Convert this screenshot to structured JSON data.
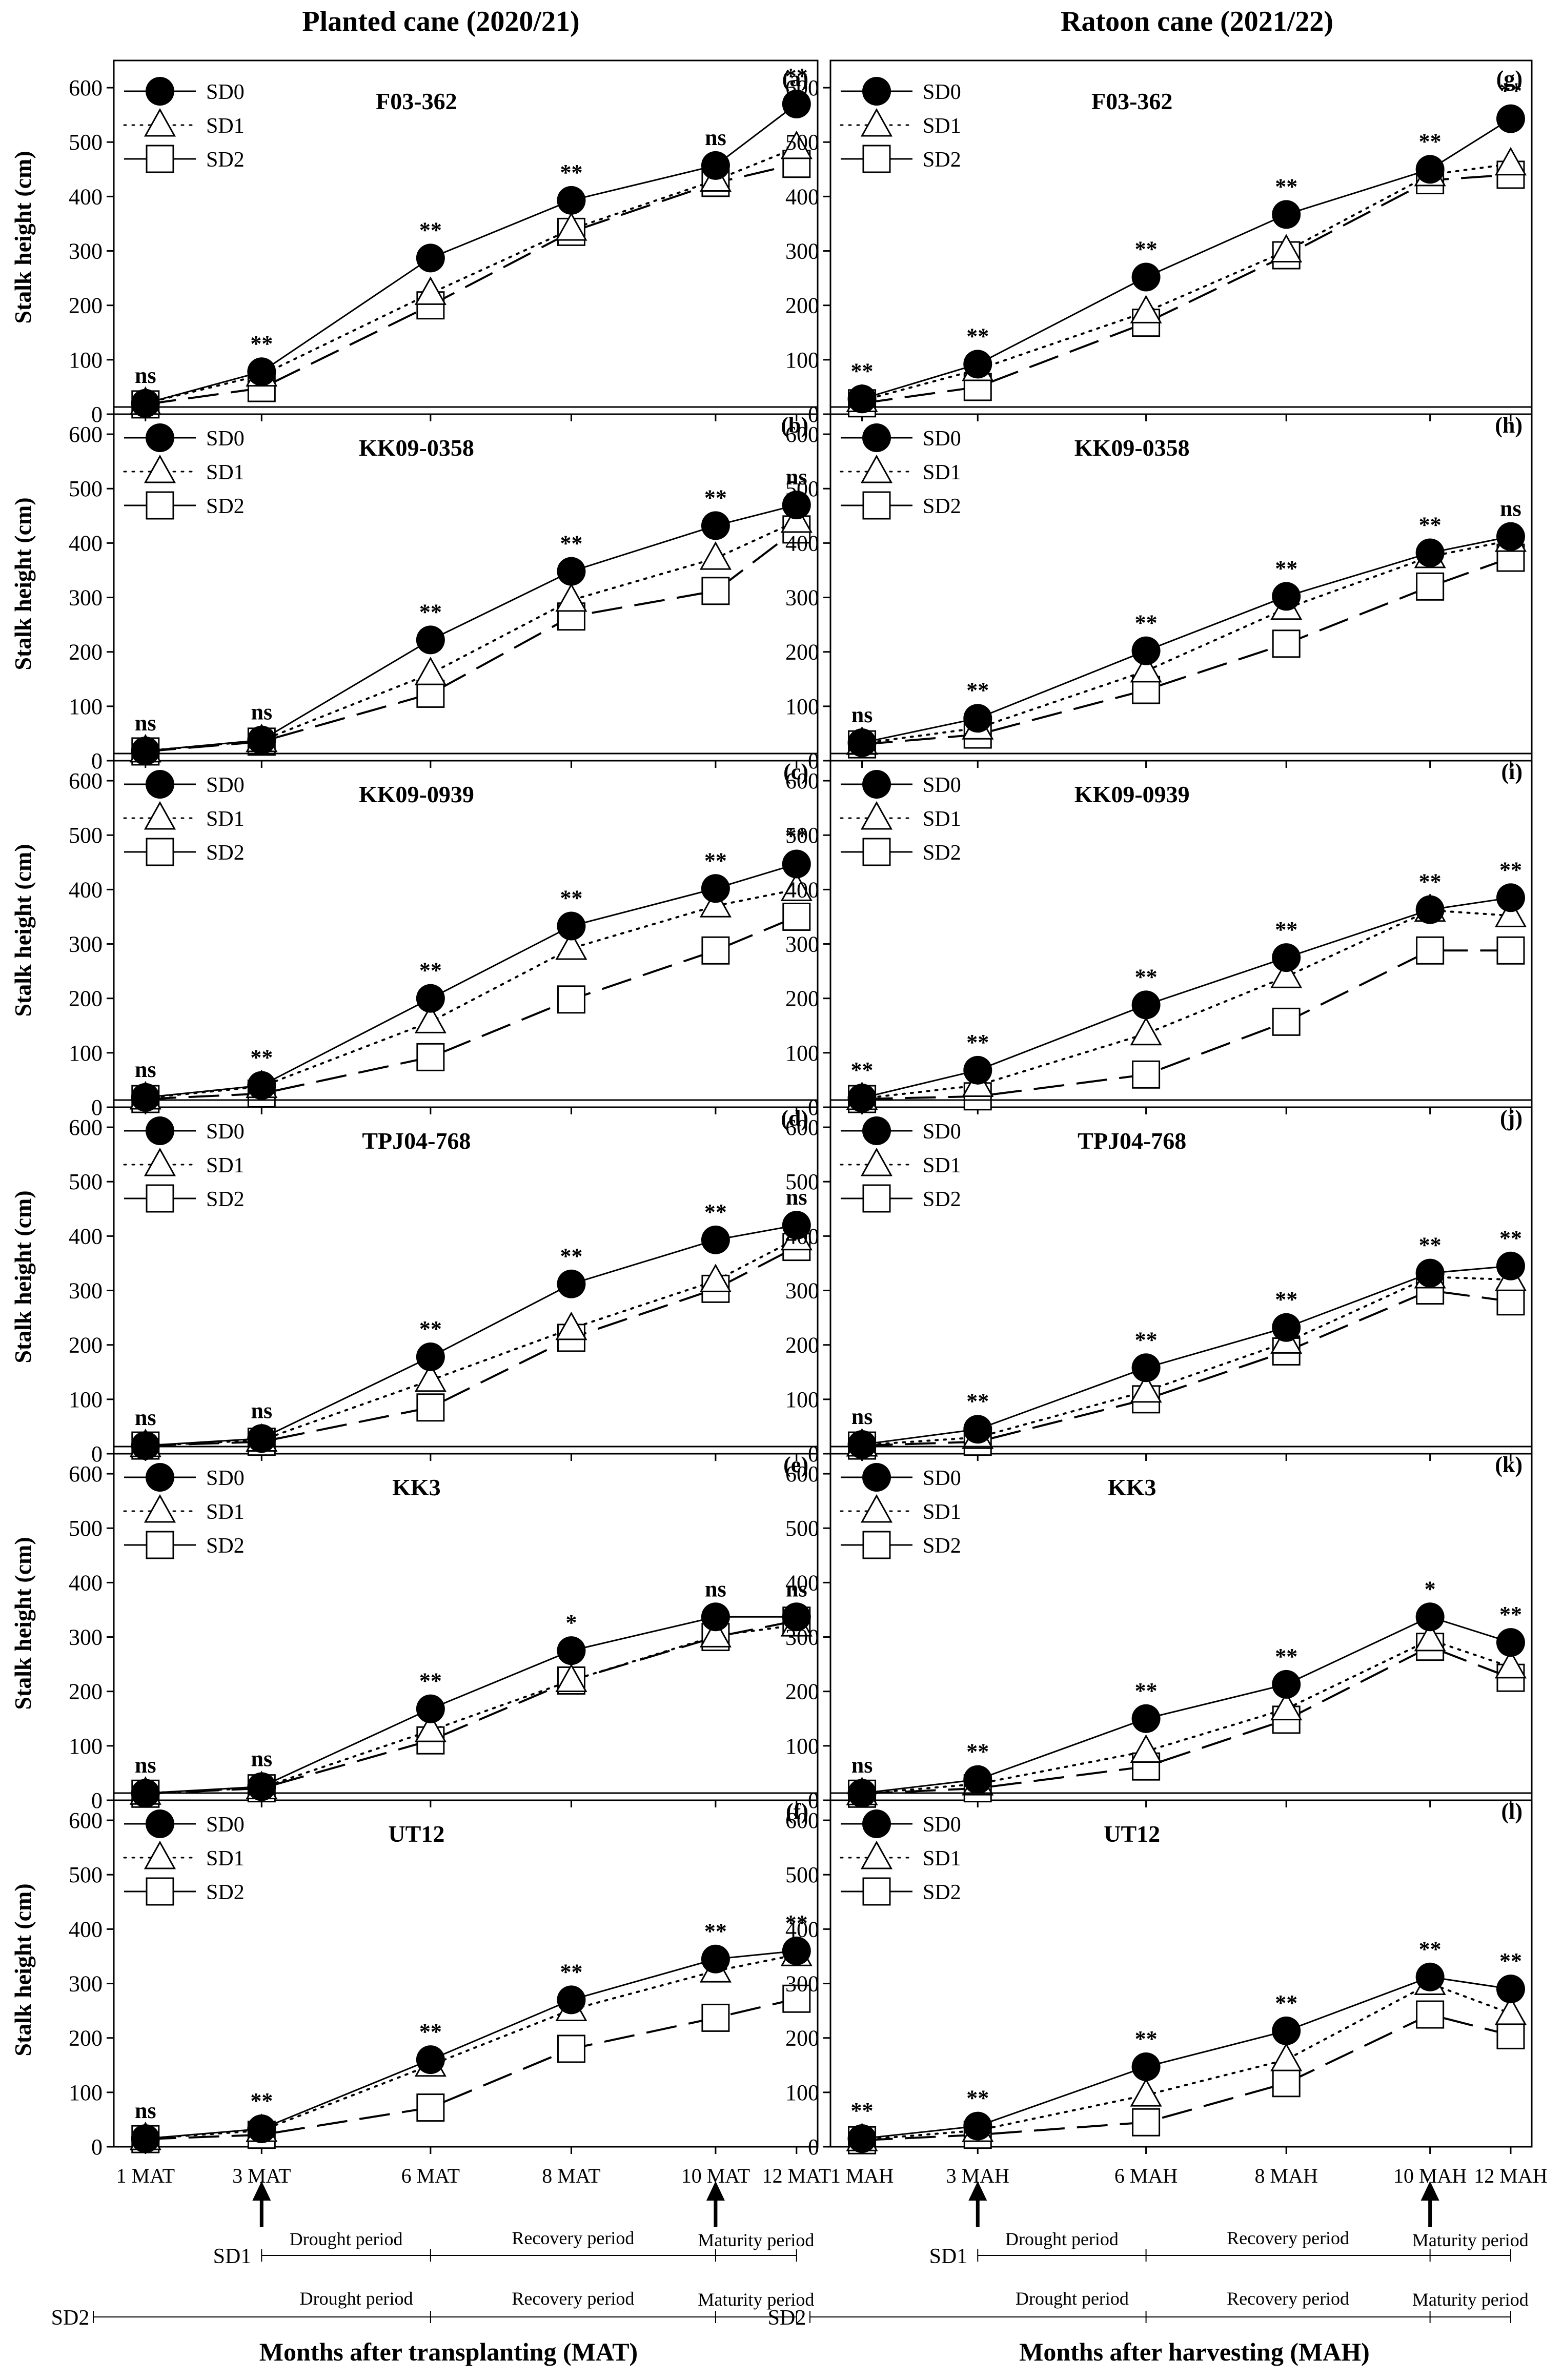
{
  "figure": {
    "col_left_title": "Planted cane (2020/21)",
    "col_right_title": "Ratoon cane (2021/22)",
    "ylabel": "Stalk height (cm)",
    "xlabel_left": "Months after transplanting (MAT)",
    "xlabel_right": "Months after harvesting (MAH)",
    "xticks_left": [
      "1 MAT",
      "3 MAT",
      "6 MAT",
      "8 MAT",
      "10 MAT",
      "12 MAT"
    ],
    "xticks_right": [
      "1 MAH",
      "3 MAH",
      "6 MAH",
      "8 MAH",
      "10 MAH",
      "12 MAH"
    ],
    "yticks": [
      "0",
      "100",
      "200",
      "300",
      "400",
      "500",
      "600"
    ],
    "legend": [
      "SD0",
      "SD1",
      "SD2"
    ],
    "timeline": {
      "sd1_label": "SD1",
      "sd2_label": "SD2",
      "drought": "Drought period",
      "recovery": "Recovery period",
      "maturity": "Maturity period"
    }
  },
  "chart_data": [
    {
      "type": "line",
      "panel": "(a)",
      "title": "F03-362",
      "categories": [
        "1 MAT",
        "3 MAT",
        "6 MAT",
        "8 MAT",
        "10 MAT",
        "12 MAT"
      ],
      "ylim": [
        0,
        650
      ],
      "series": [
        {
          "name": "SD0",
          "values": [
            20,
            78,
            287,
            393,
            457,
            570
          ]
        },
        {
          "name": "SD1",
          "values": [
            20,
            72,
            222,
            340,
            430,
            490
          ]
        },
        {
          "name": "SD2",
          "values": [
            18,
            48,
            200,
            335,
            425,
            460
          ]
        }
      ],
      "significance": [
        "ns",
        "**",
        "**",
        "**",
        "ns",
        "**"
      ]
    },
    {
      "type": "line",
      "panel": "(b)",
      "title": "KK09-0358",
      "categories": [
        "1 MAT",
        "3 MAT",
        "6 MAT",
        "8 MAT",
        "10 MAT",
        "12 MAT"
      ],
      "ylim": [
        0,
        650
      ],
      "series": [
        {
          "name": "SD0",
          "values": [
            18,
            38,
            222,
            348,
            432,
            470
          ]
        },
        {
          "name": "SD1",
          "values": [
            18,
            37,
            160,
            295,
            372,
            440
          ]
        },
        {
          "name": "SD2",
          "values": [
            17,
            35,
            123,
            265,
            312,
            425
          ]
        }
      ],
      "significance": [
        "ns",
        "ns",
        "**",
        "**",
        "**",
        "ns"
      ]
    },
    {
      "type": "line",
      "panel": "(c)",
      "title": "KK09-0939",
      "categories": [
        "1 MAT",
        "3 MAT",
        "6 MAT",
        "8 MAT",
        "10 MAT",
        "12 MAT"
      ],
      "ylim": [
        0,
        650
      ],
      "series": [
        {
          "name": "SD0",
          "values": [
            18,
            40,
            200,
            333,
            402,
            447
          ]
        },
        {
          "name": "SD1",
          "values": [
            17,
            38,
            157,
            292,
            370,
            400
          ]
        },
        {
          "name": "SD2",
          "values": [
            15,
            25,
            92,
            198,
            288,
            350
          ]
        }
      ],
      "significance": [
        "ns",
        "**",
        "**",
        "**",
        "**",
        "**"
      ]
    },
    {
      "type": "line",
      "panel": "(d)",
      "title": "TPJ04-768",
      "categories": [
        "1 MAT",
        "3 MAT",
        "6 MAT",
        "8 MAT",
        "10 MAT",
        "12 MAT"
      ],
      "ylim": [
        0,
        650
      ],
      "series": [
        {
          "name": "SD0",
          "values": [
            15,
            28,
            178,
            312,
            393,
            420
          ]
        },
        {
          "name": "SD1",
          "values": [
            15,
            25,
            135,
            230,
            318,
            395
          ]
        },
        {
          "name": "SD2",
          "values": [
            15,
            22,
            85,
            213,
            303,
            380
          ]
        }
      ],
      "significance": [
        "ns",
        "ns",
        "**",
        "**",
        "**",
        "ns"
      ]
    },
    {
      "type": "line",
      "panel": "(e)",
      "title": "KK3",
      "categories": [
        "1 MAT",
        "3 MAT",
        "6 MAT",
        "8 MAT",
        "10 MAT",
        "12 MAT"
      ],
      "ylim": [
        0,
        650
      ],
      "series": [
        {
          "name": "SD0",
          "values": [
            13,
            25,
            168,
            275,
            337,
            337
          ]
        },
        {
          "name": "SD1",
          "values": [
            13,
            23,
            128,
            220,
            302,
            322
          ]
        },
        {
          "name": "SD2",
          "values": [
            12,
            22,
            110,
            220,
            300,
            330
          ]
        }
      ],
      "significance": [
        "ns",
        "ns",
        "**",
        "*",
        "ns",
        "ns"
      ]
    },
    {
      "type": "line",
      "panel": "(f)",
      "title": "UT12",
      "categories": [
        "1 MAT",
        "3 MAT",
        "6 MAT",
        "8 MAT",
        "10 MAT",
        "12 MAT"
      ],
      "ylim": [
        0,
        650
      ],
      "series": [
        {
          "name": "SD0",
          "values": [
            15,
            33,
            160,
            270,
            345,
            360
          ]
        },
        {
          "name": "SD1",
          "values": [
            15,
            30,
            150,
            252,
            323,
            353
          ]
        },
        {
          "name": "SD2",
          "values": [
            14,
            22,
            72,
            180,
            237,
            272
          ]
        }
      ],
      "significance": [
        "ns",
        "**",
        "**",
        "**",
        "**",
        "**"
      ]
    },
    {
      "type": "line",
      "panel": "(g)",
      "title": "F03-362",
      "categories": [
        "1 MAH",
        "3 MAH",
        "6 MAH",
        "8 MAH",
        "10 MAH",
        "12 MAH"
      ],
      "ylim": [
        0,
        650
      ],
      "series": [
        {
          "name": "SD0",
          "values": [
            28,
            92,
            252,
            367,
            450,
            543
          ]
        },
        {
          "name": "SD1",
          "values": [
            25,
            82,
            188,
            300,
            440,
            460
          ]
        },
        {
          "name": "SD2",
          "values": [
            20,
            50,
            168,
            292,
            430,
            440
          ]
        }
      ],
      "significance": [
        "**",
        "**",
        "**",
        "**",
        "**",
        "**"
      ]
    },
    {
      "type": "line",
      "panel": "(h)",
      "title": "KK09-0358",
      "categories": [
        "1 MAH",
        "3 MAH",
        "6 MAH",
        "8 MAH",
        "10 MAH",
        "12 MAH"
      ],
      "ylim": [
        0,
        650
      ],
      "series": [
        {
          "name": "SD0",
          "values": [
            33,
            78,
            202,
            302,
            382,
            412
          ]
        },
        {
          "name": "SD1",
          "values": [
            32,
            60,
            165,
            280,
            375,
            405
          ]
        },
        {
          "name": "SD2",
          "values": [
            30,
            48,
            130,
            215,
            320,
            373
          ]
        }
      ],
      "significance": [
        "ns",
        "**",
        "**",
        "**",
        "**",
        "ns"
      ]
    },
    {
      "type": "line",
      "panel": "(i)",
      "title": "KK09-0939",
      "categories": [
        "1 MAH",
        "3 MAH",
        "6 MAH",
        "8 MAH",
        "10 MAH",
        "12 MAH"
      ],
      "ylim": [
        0,
        650
      ],
      "series": [
        {
          "name": "SD0",
          "values": [
            17,
            68,
            188,
            275,
            363,
            385
          ]
        },
        {
          "name": "SD1",
          "values": [
            16,
            40,
            135,
            240,
            362,
            352
          ]
        },
        {
          "name": "SD2",
          "values": [
            15,
            20,
            60,
            157,
            288,
            288
          ]
        }
      ],
      "significance": [
        "**",
        "**",
        "**",
        "**",
        "**",
        "**"
      ]
    },
    {
      "type": "line",
      "panel": "(j)",
      "title": "TPJ04-768",
      "categories": [
        "1 MAH",
        "3 MAH",
        "6 MAH",
        "8 MAH",
        "10 MAH",
        "12 MAH"
      ],
      "ylim": [
        0,
        650
      ],
      "series": [
        {
          "name": "SD0",
          "values": [
            17,
            45,
            158,
            232,
            332,
            345
          ]
        },
        {
          "name": "SD1",
          "values": [
            16,
            30,
            115,
            205,
            325,
            320
          ]
        },
        {
          "name": "SD2",
          "values": [
            15,
            22,
            100,
            188,
            300,
            280
          ]
        }
      ],
      "significance": [
        "ns",
        "**",
        "**",
        "**",
        "**",
        "**"
      ]
    },
    {
      "type": "line",
      "panel": "(k)",
      "title": "KK3",
      "categories": [
        "1 MAH",
        "3 MAH",
        "6 MAH",
        "8 MAH",
        "10 MAH",
        "12 MAH"
      ],
      "ylim": [
        0,
        650
      ],
      "series": [
        {
          "name": "SD0",
          "values": [
            13,
            38,
            150,
            213,
            337,
            290
          ]
        },
        {
          "name": "SD1",
          "values": [
            12,
            30,
            90,
            168,
            295,
            245
          ]
        },
        {
          "name": "SD2",
          "values": [
            12,
            22,
            62,
            148,
            282,
            225
          ]
        }
      ],
      "significance": [
        "ns",
        "**",
        "**",
        "**",
        "*",
        "**"
      ]
    },
    {
      "type": "line",
      "panel": "(l)",
      "title": "UT12",
      "categories": [
        "1 MAH",
        "3 MAH",
        "6 MAH",
        "8 MAH",
        "10 MAH",
        "12 MAH"
      ],
      "ylim": [
        0,
        650
      ],
      "series": [
        {
          "name": "SD0",
          "values": [
            15,
            38,
            147,
            213,
            312,
            290
          ]
        },
        {
          "name": "SD1",
          "values": [
            13,
            30,
            95,
            160,
            300,
            245
          ]
        },
        {
          "name": "SD2",
          "values": [
            12,
            22,
            45,
            117,
            243,
            205
          ]
        }
      ],
      "significance": [
        "**",
        "**",
        "**",
        "**",
        "**",
        "**"
      ]
    }
  ]
}
